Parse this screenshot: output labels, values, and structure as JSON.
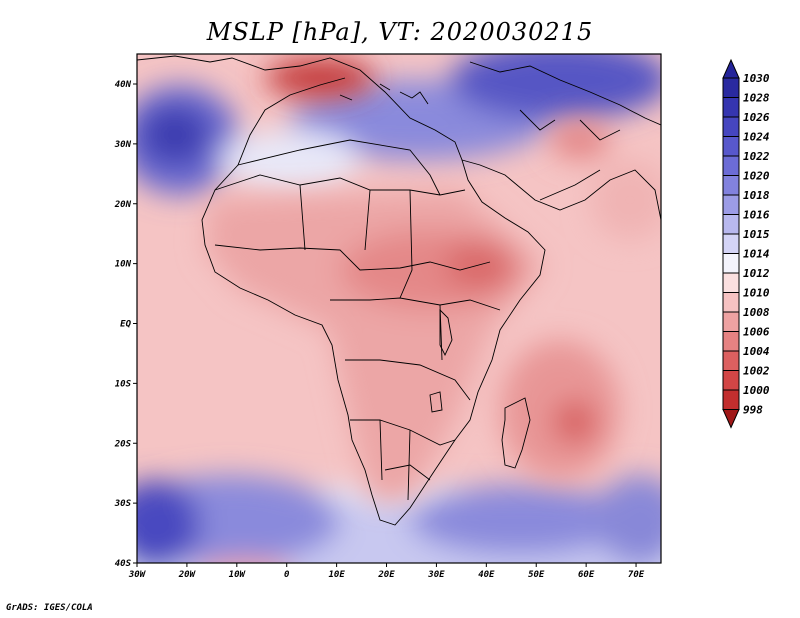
{
  "title": "MSLP [hPa], VT: 2020030215",
  "footer": "GrADS: IGES/COLA",
  "axes": {
    "x_ticks": [
      "30W",
      "20W",
      "10W",
      "0",
      "10E",
      "20E",
      "30E",
      "40E",
      "50E",
      "60E",
      "70E"
    ],
    "y_ticks": [
      "40N",
      "30N",
      "20N",
      "10N",
      "EQ",
      "10S",
      "20S",
      "30S",
      "40S"
    ]
  },
  "colorbar": {
    "levels": [
      "1030",
      "1028",
      "1026",
      "1024",
      "1022",
      "1020",
      "1018",
      "1016",
      "1015",
      "1014",
      "1012",
      "1010",
      "1008",
      "1006",
      "1004",
      "1002",
      "1000",
      "998"
    ],
    "colors": [
      "#2a2aa0",
      "#3535b0",
      "#4646c0",
      "#5858cc",
      "#6c6cd6",
      "#8282de",
      "#9c9ce6",
      "#b8b8ee",
      "#d4d4f6",
      "#f4f4fc",
      "#fbe0e0",
      "#f6c2c2",
      "#eea2a2",
      "#e68282",
      "#dc6060",
      "#d24646",
      "#c22e2e",
      "#aa1e1e"
    ],
    "top_color": "#24249a",
    "bottom_color": "#a01818"
  },
  "colors": {
    "background_field": "#f5c4c4",
    "land_field": "#e89a9a",
    "high_pressure": "#6666cc",
    "low_pressure": "#cc3a3a",
    "coastline": "#000000"
  }
}
